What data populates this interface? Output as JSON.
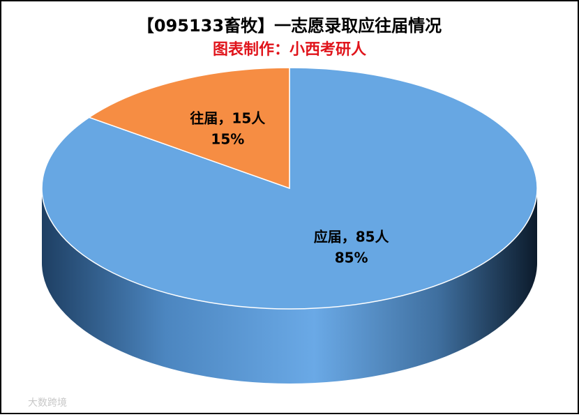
{
  "chart_data": {
    "type": "pie",
    "title": "【095133畜牧】一志愿录取应往届情况",
    "subtitle": "图表制作：小西考研人",
    "categories": [
      "应届",
      "往届"
    ],
    "values": [
      85,
      15
    ],
    "value_labels": [
      "应届，85人",
      "往届，15人"
    ],
    "percent_labels": [
      "85%",
      "15%"
    ],
    "colors": [
      "#67a7e3",
      "#f68d43"
    ],
    "watermark": "大数跨境"
  }
}
